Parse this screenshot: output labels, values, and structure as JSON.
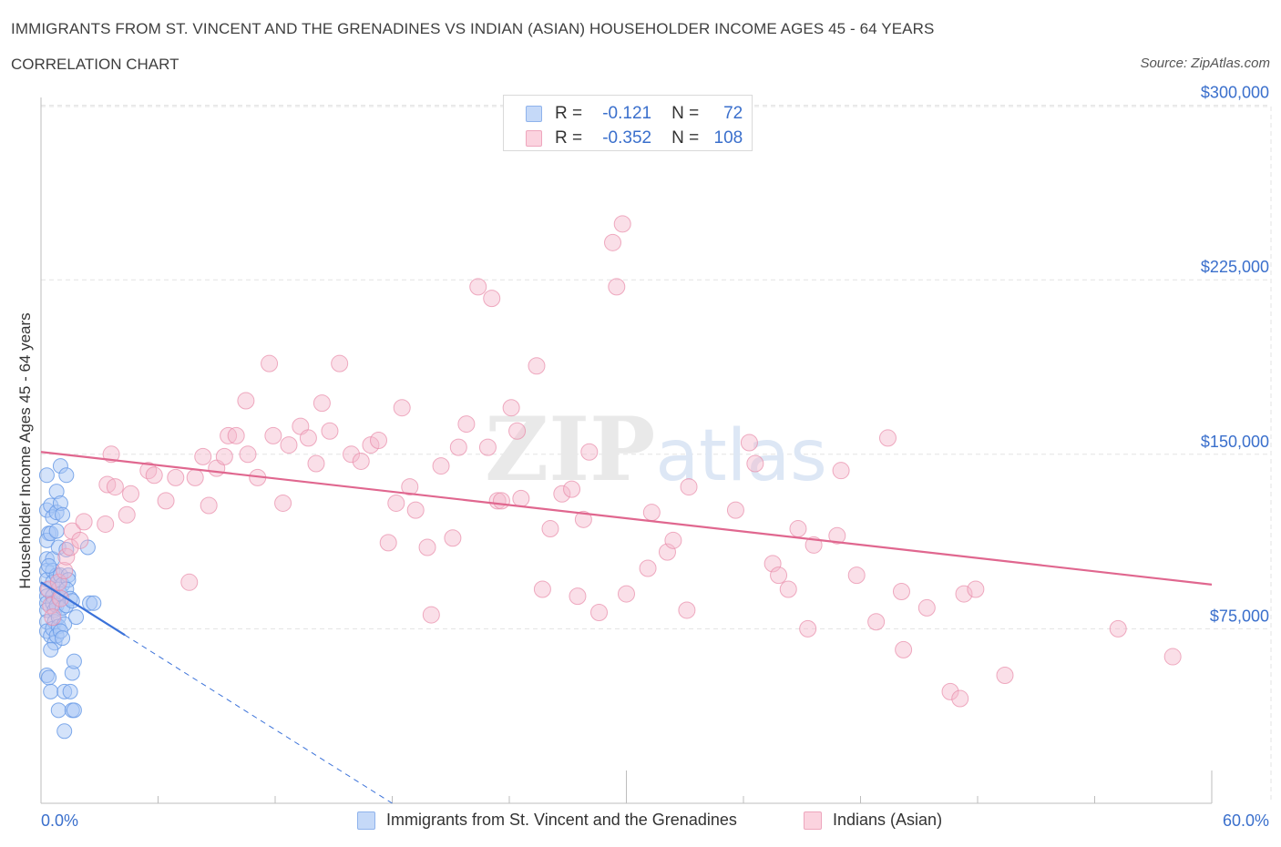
{
  "title": "IMMIGRANTS FROM ST. VINCENT AND THE GRENADINES VS INDIAN (ASIAN) HOUSEHOLDER INCOME AGES 45 - 64 YEARS",
  "subtitle": "CORRELATION CHART",
  "source": "Source: ZipAtlas.com",
  "watermark": "ZIPatlas",
  "legend_top": {
    "rows": [
      {
        "r_label": "R =",
        "r_value": "-0.121",
        "n_label": "N =",
        "n_value": "72",
        "color": "#aac8f5"
      },
      {
        "r_label": "R =",
        "r_value": "-0.352",
        "n_label": "N =",
        "n_value": "108",
        "color": "#f5b8cb"
      }
    ]
  },
  "colors": {
    "blue_fill": "#aac8f5",
    "blue_stroke": "#6a9be6",
    "blue_line": "#3b72d9",
    "pink_fill": "#f5b8cb",
    "pink_stroke": "#e88aa8",
    "pink_line": "#e0678f",
    "axis_text": "#3a6fcc",
    "grid": "#e3e3e3"
  },
  "chart_data": {
    "type": "scatter",
    "title": "IMMIGRANTS FROM ST. VINCENT AND THE GRENADINES VS INDIAN (ASIAN) HOUSEHOLDER INCOME AGES 45 - 64 YEARS",
    "xlabel": "",
    "ylabel": "Householder Income Ages 45 - 64 years",
    "xlim": [
      0,
      60
    ],
    "ylim": [
      0,
      300000
    ],
    "x_tick_labels": [
      "0.0%",
      "60.0%"
    ],
    "y_ticks": [
      75000,
      150000,
      225000,
      300000
    ],
    "y_tick_labels": [
      "$75,000",
      "$150,000",
      "$225,000",
      "$300,000"
    ],
    "grid": true,
    "legend_position": "bottom",
    "series": [
      {
        "name": "Immigrants from St. Vincent and the Grenadines",
        "color": "#aac8f5",
        "trend": {
          "x": [
            0,
            18
          ],
          "y": [
            95000,
            0
          ],
          "solid_until_x": 4.3
        },
        "points": [
          [
            0.3,
            141000
          ],
          [
            0.3,
            126000
          ],
          [
            0.4,
            116000
          ],
          [
            0.3,
            113000
          ],
          [
            0.3,
            105000
          ],
          [
            0.3,
            100000
          ],
          [
            0.3,
            96000
          ],
          [
            0.3,
            92000
          ],
          [
            0.3,
            89000
          ],
          [
            0.3,
            86000
          ],
          [
            0.3,
            83000
          ],
          [
            0.3,
            78000
          ],
          [
            0.3,
            74000
          ],
          [
            0.5,
            72000
          ],
          [
            0.3,
            55000
          ],
          [
            0.4,
            54000
          ],
          [
            0.5,
            48000
          ],
          [
            0.5,
            128000
          ],
          [
            0.6,
            123000
          ],
          [
            0.5,
            116000
          ],
          [
            0.6,
            105000
          ],
          [
            0.6,
            100000
          ],
          [
            0.6,
            95000
          ],
          [
            0.6,
            89000
          ],
          [
            0.6,
            86000
          ],
          [
            0.7,
            83000
          ],
          [
            0.7,
            78000
          ],
          [
            0.6,
            75000
          ],
          [
            0.7,
            69000
          ],
          [
            0.8,
            134000
          ],
          [
            0.8,
            125000
          ],
          [
            0.8,
            117000
          ],
          [
            0.9,
            110000
          ],
          [
            0.8,
            98000
          ],
          [
            0.9,
            92000
          ],
          [
            0.9,
            88000
          ],
          [
            0.8,
            85000
          ],
          [
            0.9,
            80000
          ],
          [
            0.9,
            76000
          ],
          [
            0.8,
            72000
          ],
          [
            0.9,
            40000
          ],
          [
            1.0,
            145000
          ],
          [
            1.0,
            129000
          ],
          [
            1.1,
            124000
          ],
          [
            1.0,
            98000
          ],
          [
            1.1,
            94000
          ],
          [
            1.0,
            90000
          ],
          [
            1.1,
            84000
          ],
          [
            1.2,
            77000
          ],
          [
            1.0,
            74000
          ],
          [
            1.1,
            71000
          ],
          [
            1.2,
            48000
          ],
          [
            1.2,
            31000
          ],
          [
            1.3,
            141000
          ],
          [
            1.3,
            109000
          ],
          [
            1.4,
            98000
          ],
          [
            1.4,
            96000
          ],
          [
            1.3,
            92000
          ],
          [
            1.5,
            88000
          ],
          [
            1.3,
            85000
          ],
          [
            1.6,
            56000
          ],
          [
            1.5,
            48000
          ],
          [
            1.6,
            40000
          ],
          [
            1.7,
            61000
          ],
          [
            1.6,
            87000
          ],
          [
            1.8,
            80000
          ],
          [
            1.7,
            40000
          ],
          [
            2.4,
            110000
          ],
          [
            2.5,
            86000
          ],
          [
            2.7,
            86000
          ],
          [
            0.4,
            102000
          ],
          [
            0.5,
            66000
          ]
        ]
      },
      {
        "name": "Indians (Asian)",
        "color": "#f5b8cb",
        "trend": {
          "x": [
            0,
            60
          ],
          "y": [
            151000,
            94000
          ]
        },
        "points": [
          [
            0.4,
            92000
          ],
          [
            0.5,
            85000
          ],
          [
            0.6,
            80000
          ],
          [
            0.9,
            95000
          ],
          [
            1.0,
            88000
          ],
          [
            1.2,
            100000
          ],
          [
            1.3,
            106000
          ],
          [
            1.5,
            110000
          ],
          [
            1.6,
            117000
          ],
          [
            2.0,
            113000
          ],
          [
            2.2,
            121000
          ],
          [
            3.3,
            120000
          ],
          [
            3.4,
            137000
          ],
          [
            3.6,
            150000
          ],
          [
            3.8,
            136000
          ],
          [
            4.4,
            124000
          ],
          [
            4.6,
            133000
          ],
          [
            5.5,
            143000
          ],
          [
            5.8,
            141000
          ],
          [
            6.4,
            130000
          ],
          [
            6.9,
            140000
          ],
          [
            7.6,
            95000
          ],
          [
            7.9,
            140000
          ],
          [
            8.3,
            149000
          ],
          [
            8.6,
            128000
          ],
          [
            9.0,
            144000
          ],
          [
            9.4,
            149000
          ],
          [
            9.6,
            158000
          ],
          [
            10.0,
            158000
          ],
          [
            10.5,
            173000
          ],
          [
            10.6,
            150000
          ],
          [
            11.1,
            140000
          ],
          [
            11.7,
            189000
          ],
          [
            11.9,
            158000
          ],
          [
            12.4,
            129000
          ],
          [
            12.7,
            154000
          ],
          [
            13.3,
            162000
          ],
          [
            13.7,
            157000
          ],
          [
            14.1,
            146000
          ],
          [
            14.4,
            172000
          ],
          [
            14.8,
            160000
          ],
          [
            15.3,
            189000
          ],
          [
            15.9,
            150000
          ],
          [
            16.4,
            147000
          ],
          [
            16.9,
            154000
          ],
          [
            17.3,
            156000
          ],
          [
            17.8,
            112000
          ],
          [
            18.2,
            129000
          ],
          [
            18.5,
            170000
          ],
          [
            18.9,
            136000
          ],
          [
            19.2,
            126000
          ],
          [
            19.8,
            110000
          ],
          [
            20.0,
            81000
          ],
          [
            20.5,
            145000
          ],
          [
            21.1,
            114000
          ],
          [
            21.4,
            153000
          ],
          [
            21.8,
            163000
          ],
          [
            22.4,
            222000
          ],
          [
            22.9,
            153000
          ],
          [
            23.1,
            217000
          ],
          [
            23.4,
            130000
          ],
          [
            23.6,
            130000
          ],
          [
            24.1,
            170000
          ],
          [
            24.4,
            160000
          ],
          [
            24.6,
            131000
          ],
          [
            25.4,
            188000
          ],
          [
            25.7,
            92000
          ],
          [
            26.1,
            118000
          ],
          [
            26.7,
            133000
          ],
          [
            27.2,
            135000
          ],
          [
            27.5,
            89000
          ],
          [
            27.8,
            122000
          ],
          [
            28.1,
            151000
          ],
          [
            28.6,
            82000
          ],
          [
            29.3,
            241000
          ],
          [
            29.5,
            222000
          ],
          [
            29.8,
            249000
          ],
          [
            30.0,
            90000
          ],
          [
            31.1,
            101000
          ],
          [
            31.3,
            125000
          ],
          [
            32.1,
            108000
          ],
          [
            32.4,
            113000
          ],
          [
            33.1,
            83000
          ],
          [
            33.2,
            136000
          ],
          [
            35.6,
            126000
          ],
          [
            36.3,
            155000
          ],
          [
            36.6,
            146000
          ],
          [
            37.5,
            103000
          ],
          [
            37.8,
            98000
          ],
          [
            38.3,
            92000
          ],
          [
            38.8,
            118000
          ],
          [
            39.3,
            75000
          ],
          [
            39.6,
            111000
          ],
          [
            40.8,
            115000
          ],
          [
            41.0,
            143000
          ],
          [
            41.8,
            98000
          ],
          [
            42.8,
            78000
          ],
          [
            43.4,
            157000
          ],
          [
            44.1,
            91000
          ],
          [
            44.2,
            66000
          ],
          [
            45.4,
            84000
          ],
          [
            46.6,
            48000
          ],
          [
            47.1,
            45000
          ],
          [
            47.3,
            90000
          ],
          [
            47.9,
            92000
          ],
          [
            49.4,
            55000
          ],
          [
            55.2,
            75000
          ],
          [
            58.0,
            63000
          ]
        ]
      }
    ]
  }
}
